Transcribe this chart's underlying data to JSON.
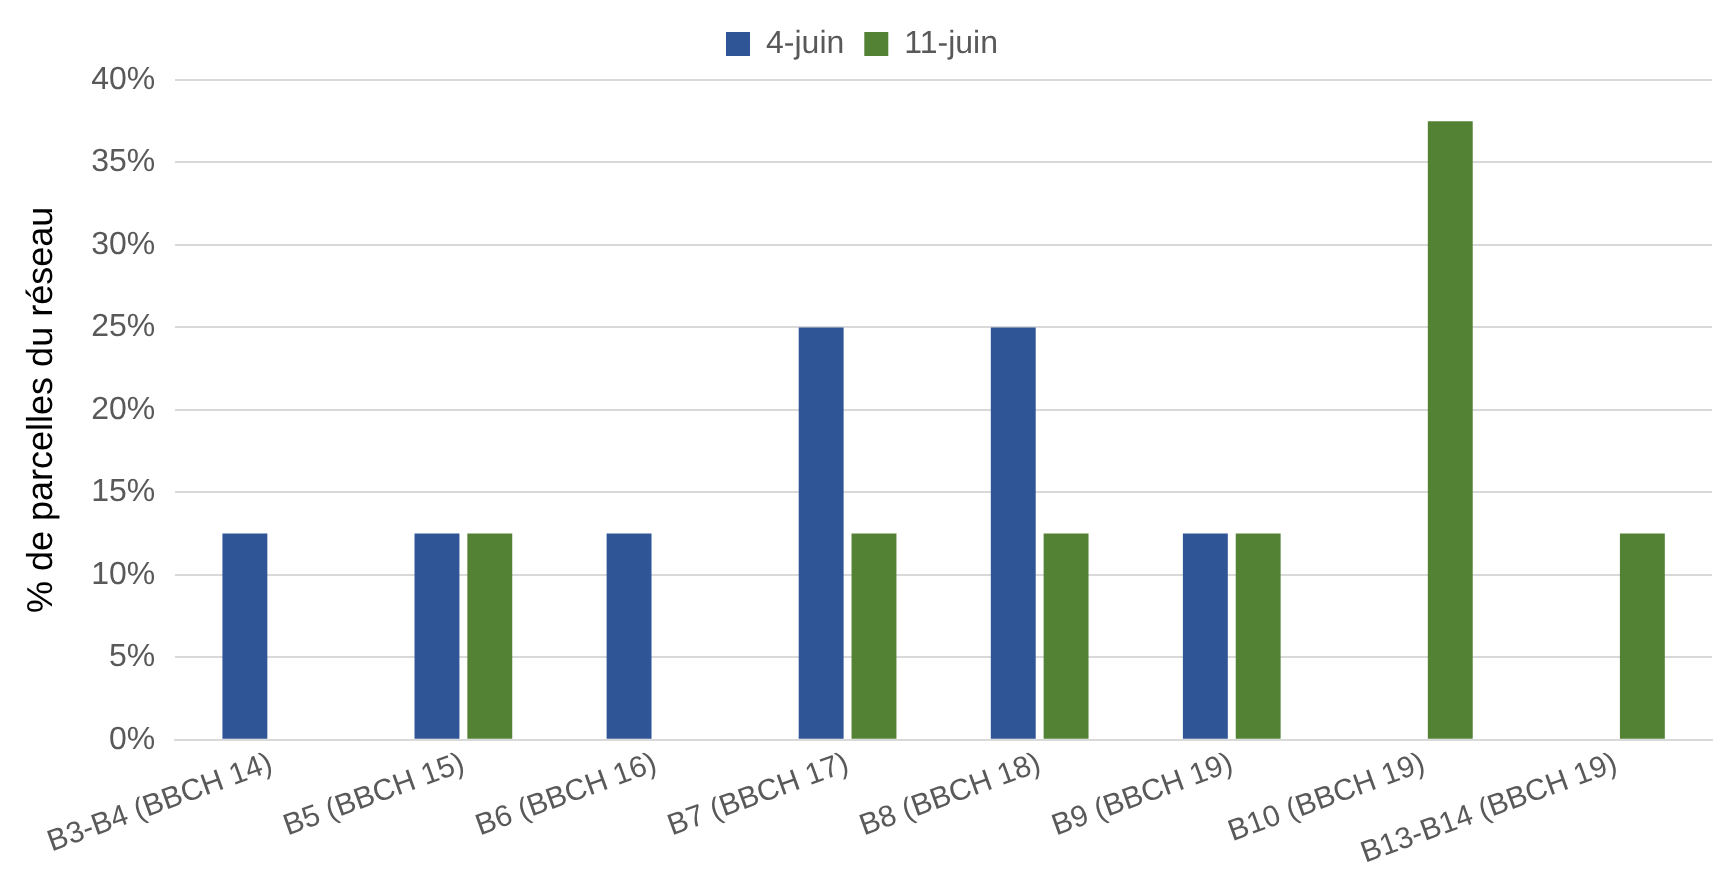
{
  "chart_data": {
    "type": "bar",
    "ylabel": "% de parcelles du réseau",
    "categories": [
      "B3-B4 (BBCH 14)",
      "B5 (BBCH 15)",
      "B6 (BBCH 16)",
      "B7 (BBCH 17)",
      "B8 (BBCH 18)",
      "B9 (BBCH 19)",
      "B10 (BBCH 19)",
      "B13-B14 (BBCH 19)"
    ],
    "series": [
      {
        "name": "4-juin",
        "color": "#2f5597",
        "values": [
          12.5,
          12.5,
          12.5,
          25,
          25,
          12.5,
          0,
          0
        ]
      },
      {
        "name": "11-juin",
        "color": "#548235",
        "values": [
          0,
          12.5,
          0,
          12.5,
          12.5,
          12.5,
          37.5,
          12.5
        ]
      }
    ],
    "ylim": [
      0,
      40
    ],
    "yticks": [
      {
        "value": 0,
        "label": "0%"
      },
      {
        "value": 5,
        "label": "5%"
      },
      {
        "value": 10,
        "label": "10%"
      },
      {
        "value": 15,
        "label": "15%"
      },
      {
        "value": 20,
        "label": "20%"
      },
      {
        "value": 25,
        "label": "25%"
      },
      {
        "value": 30,
        "label": "30%"
      },
      {
        "value": 35,
        "label": "35%"
      },
      {
        "value": 40,
        "label": "40%"
      }
    ],
    "grid": "y",
    "legend": "top"
  }
}
